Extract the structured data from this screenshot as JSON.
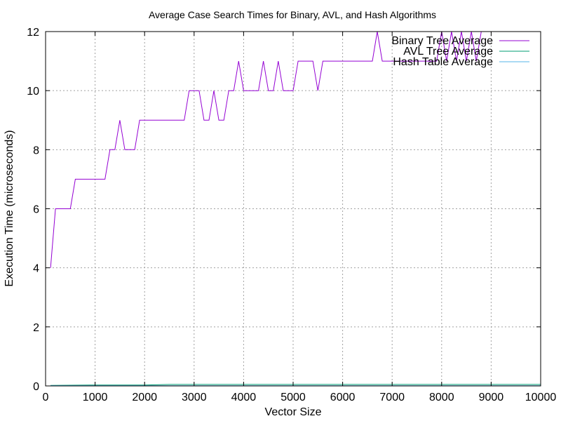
{
  "chart_data": {
    "type": "line",
    "title": "Average Case Search Times for Binary, AVL, and Hash Algorithms",
    "xlabel": "Vector Size",
    "ylabel": "Execution Time (microseconds)",
    "xlim": [
      0,
      10000
    ],
    "ylim": [
      0,
      12
    ],
    "xticks": [
      0,
      1000,
      2000,
      3000,
      4000,
      5000,
      6000,
      7000,
      8000,
      9000,
      10000
    ],
    "yticks": [
      0,
      2,
      4,
      6,
      8,
      10,
      12
    ],
    "grid": true,
    "legend_position": "top-right",
    "series": [
      {
        "name": "Binary Tree Average",
        "color": "#9400d3",
        "x": [
          100,
          200,
          300,
          400,
          500,
          600,
          700,
          800,
          900,
          1000,
          1100,
          1200,
          1300,
          1400,
          1500,
          1600,
          1700,
          1800,
          1900,
          2000,
          2100,
          2200,
          2300,
          2400,
          2500,
          2600,
          2700,
          2800,
          2900,
          3000,
          3100,
          3200,
          3300,
          3400,
          3500,
          3600,
          3700,
          3800,
          3900,
          4000,
          4100,
          4200,
          4300,
          4400,
          4500,
          4600,
          4700,
          4800,
          4900,
          5000,
          5100,
          5200,
          5300,
          5400,
          5500,
          5600,
          5700,
          5800,
          5900,
          6000,
          6100,
          6200,
          6300,
          6400,
          6500,
          6600,
          6700,
          6800,
          6900,
          7000,
          7100,
          7200,
          7300,
          7400,
          7500,
          7600,
          7700,
          7800,
          7900,
          8000,
          8100,
          8200,
          8300,
          8400,
          8500,
          8600,
          8700,
          8800
        ],
        "y": [
          4,
          6,
          6,
          6,
          6,
          7,
          7,
          7,
          7,
          7,
          7,
          7,
          8,
          8,
          9,
          8,
          8,
          8,
          9,
          9,
          9,
          9,
          9,
          9,
          9,
          9,
          9,
          9,
          10,
          10,
          10,
          9,
          9,
          10,
          9,
          9,
          10,
          10,
          11,
          10,
          10,
          10,
          10,
          11,
          10,
          10,
          11,
          10,
          10,
          10,
          11,
          11,
          11,
          11,
          10,
          11,
          11,
          11,
          11,
          11,
          11,
          11,
          11,
          11,
          11,
          11,
          12,
          11,
          11,
          11,
          11,
          11,
          11,
          11,
          11,
          11,
          11,
          11,
          11,
          12,
          11,
          12,
          11,
          12,
          11,
          12,
          11,
          12
        ]
      },
      {
        "name": "AVL Tree Average",
        "color": "#009e73",
        "x": [
          100,
          1000,
          2000,
          2500,
          3000,
          4000,
          5000,
          6000,
          7000,
          8000,
          9000,
          10000
        ],
        "y": [
          0.02,
          0.03,
          0.03,
          0.05,
          0.05,
          0.05,
          0.05,
          0.05,
          0.05,
          0.05,
          0.05,
          0.05
        ]
      },
      {
        "name": "Hash Table Average",
        "color": "#56b4e9",
        "x": [
          100,
          1000,
          2000,
          3000,
          4000,
          5000,
          6000,
          7000,
          8000,
          9000,
          10000
        ],
        "y": [
          0.01,
          0.01,
          0.01,
          0.01,
          0.01,
          0.01,
          0.01,
          0.01,
          0.01,
          0.01,
          0.01
        ]
      }
    ]
  }
}
